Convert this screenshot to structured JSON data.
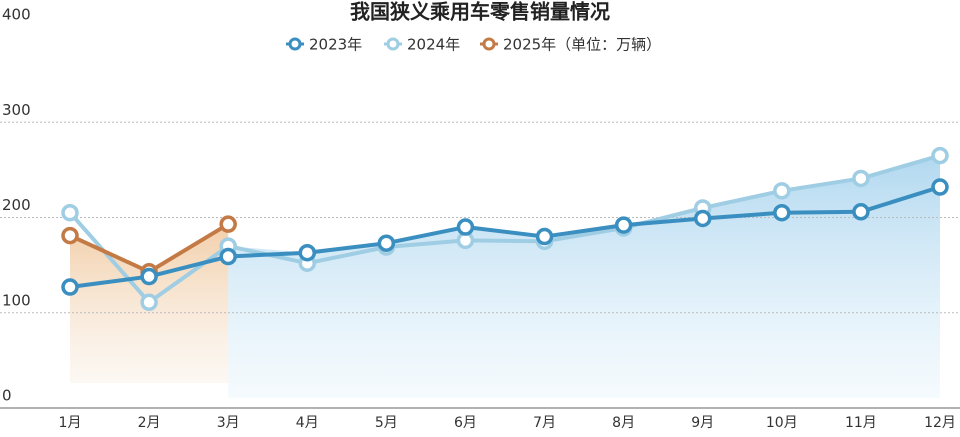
{
  "chart_data": {
    "type": "line",
    "title": "我国狭义乘用车零售销量情况",
    "categories": [
      "1月",
      "2月",
      "3月",
      "4月",
      "5月",
      "6月",
      "7月",
      "8月",
      "9月",
      "10月",
      "11月",
      "12月"
    ],
    "series": [
      {
        "name": "2023年",
        "color": "#3a8fc0",
        "values": [
          127,
          138,
          159,
          163,
          173,
          190,
          180,
          192,
          199,
          205,
          206,
          232
        ]
      },
      {
        "name": "2024年",
        "color": "#9fcde3",
        "values": [
          205,
          111,
          170,
          152,
          169,
          176,
          175,
          189,
          210,
          228,
          241,
          265
        ]
      },
      {
        "name": "2025年（单位：万辆）",
        "color": "#c47a45",
        "values": [
          181,
          143,
          193,
          null,
          null,
          null,
          null,
          null,
          null,
          null,
          null,
          null
        ]
      }
    ],
    "ylim": [
      0,
      400
    ],
    "yticks": [
      0,
      100,
      200,
      300,
      400
    ],
    "grid": true
  }
}
